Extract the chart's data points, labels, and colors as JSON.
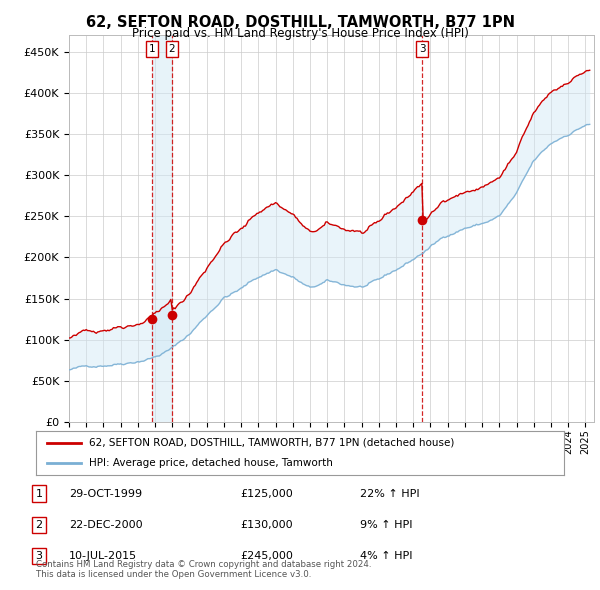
{
  "title": "62, SEFTON ROAD, DOSTHILL, TAMWORTH, B77 1PN",
  "subtitle": "Price paid vs. HM Land Registry's House Price Index (HPI)",
  "ylabel_ticks": [
    "£0",
    "£50K",
    "£100K",
    "£150K",
    "£200K",
    "£250K",
    "£300K",
    "£350K",
    "£400K",
    "£450K"
  ],
  "ytick_values": [
    0,
    50000,
    100000,
    150000,
    200000,
    250000,
    300000,
    350000,
    400000,
    450000
  ],
  "xlim_start": 1995.0,
  "xlim_end": 2025.5,
  "ylim": [
    0,
    470000
  ],
  "sale_dates": [
    1999.83,
    2000.98,
    2015.52
  ],
  "sale_prices": [
    125000,
    130000,
    245000
  ],
  "sale_labels": [
    "1",
    "2",
    "3"
  ],
  "legend_entries": [
    "62, SEFTON ROAD, DOSTHILL, TAMWORTH, B77 1PN (detached house)",
    "HPI: Average price, detached house, Tamworth"
  ],
  "table_entries": [
    {
      "label": "1",
      "date": "29-OCT-1999",
      "price": "£125,000",
      "hpi": "22% ↑ HPI"
    },
    {
      "label": "2",
      "date": "22-DEC-2000",
      "price": "£130,000",
      "hpi": "9% ↑ HPI"
    },
    {
      "label": "3",
      "date": "10-JUL-2015",
      "price": "£245,000",
      "hpi": "4% ↑ HPI"
    }
  ],
  "footnote": "Contains HM Land Registry data © Crown copyright and database right 2024.\nThis data is licensed under the Open Government Licence v3.0.",
  "line_color_red": "#cc0000",
  "line_color_blue": "#7aafd4",
  "fill_color_blue": "#d0e8f5",
  "vline_color": "#cc0000",
  "background_color": "#ffffff",
  "grid_color": "#cccccc",
  "hpi_anchors": [
    [
      1995.0,
      63000
    ],
    [
      1996.0,
      66000
    ],
    [
      1997.0,
      70000
    ],
    [
      1998.0,
      74000
    ],
    [
      1999.0,
      79000
    ],
    [
      2000.0,
      85000
    ],
    [
      2001.0,
      95000
    ],
    [
      2002.0,
      112000
    ],
    [
      2003.0,
      135000
    ],
    [
      2004.0,
      158000
    ],
    [
      2005.0,
      168000
    ],
    [
      2006.0,
      182000
    ],
    [
      2007.0,
      192000
    ],
    [
      2008.0,
      183000
    ],
    [
      2009.0,
      168000
    ],
    [
      2010.0,
      175000
    ],
    [
      2011.0,
      170000
    ],
    [
      2012.0,
      168000
    ],
    [
      2013.0,
      173000
    ],
    [
      2014.0,
      185000
    ],
    [
      2015.0,
      198000
    ],
    [
      2016.0,
      213000
    ],
    [
      2017.0,
      228000
    ],
    [
      2018.0,
      238000
    ],
    [
      2019.0,
      243000
    ],
    [
      2020.0,
      252000
    ],
    [
      2021.0,
      278000
    ],
    [
      2022.0,
      315000
    ],
    [
      2023.0,
      335000
    ],
    [
      2024.0,
      348000
    ],
    [
      2025.0,
      360000
    ]
  ],
  "noise_seed": 42
}
